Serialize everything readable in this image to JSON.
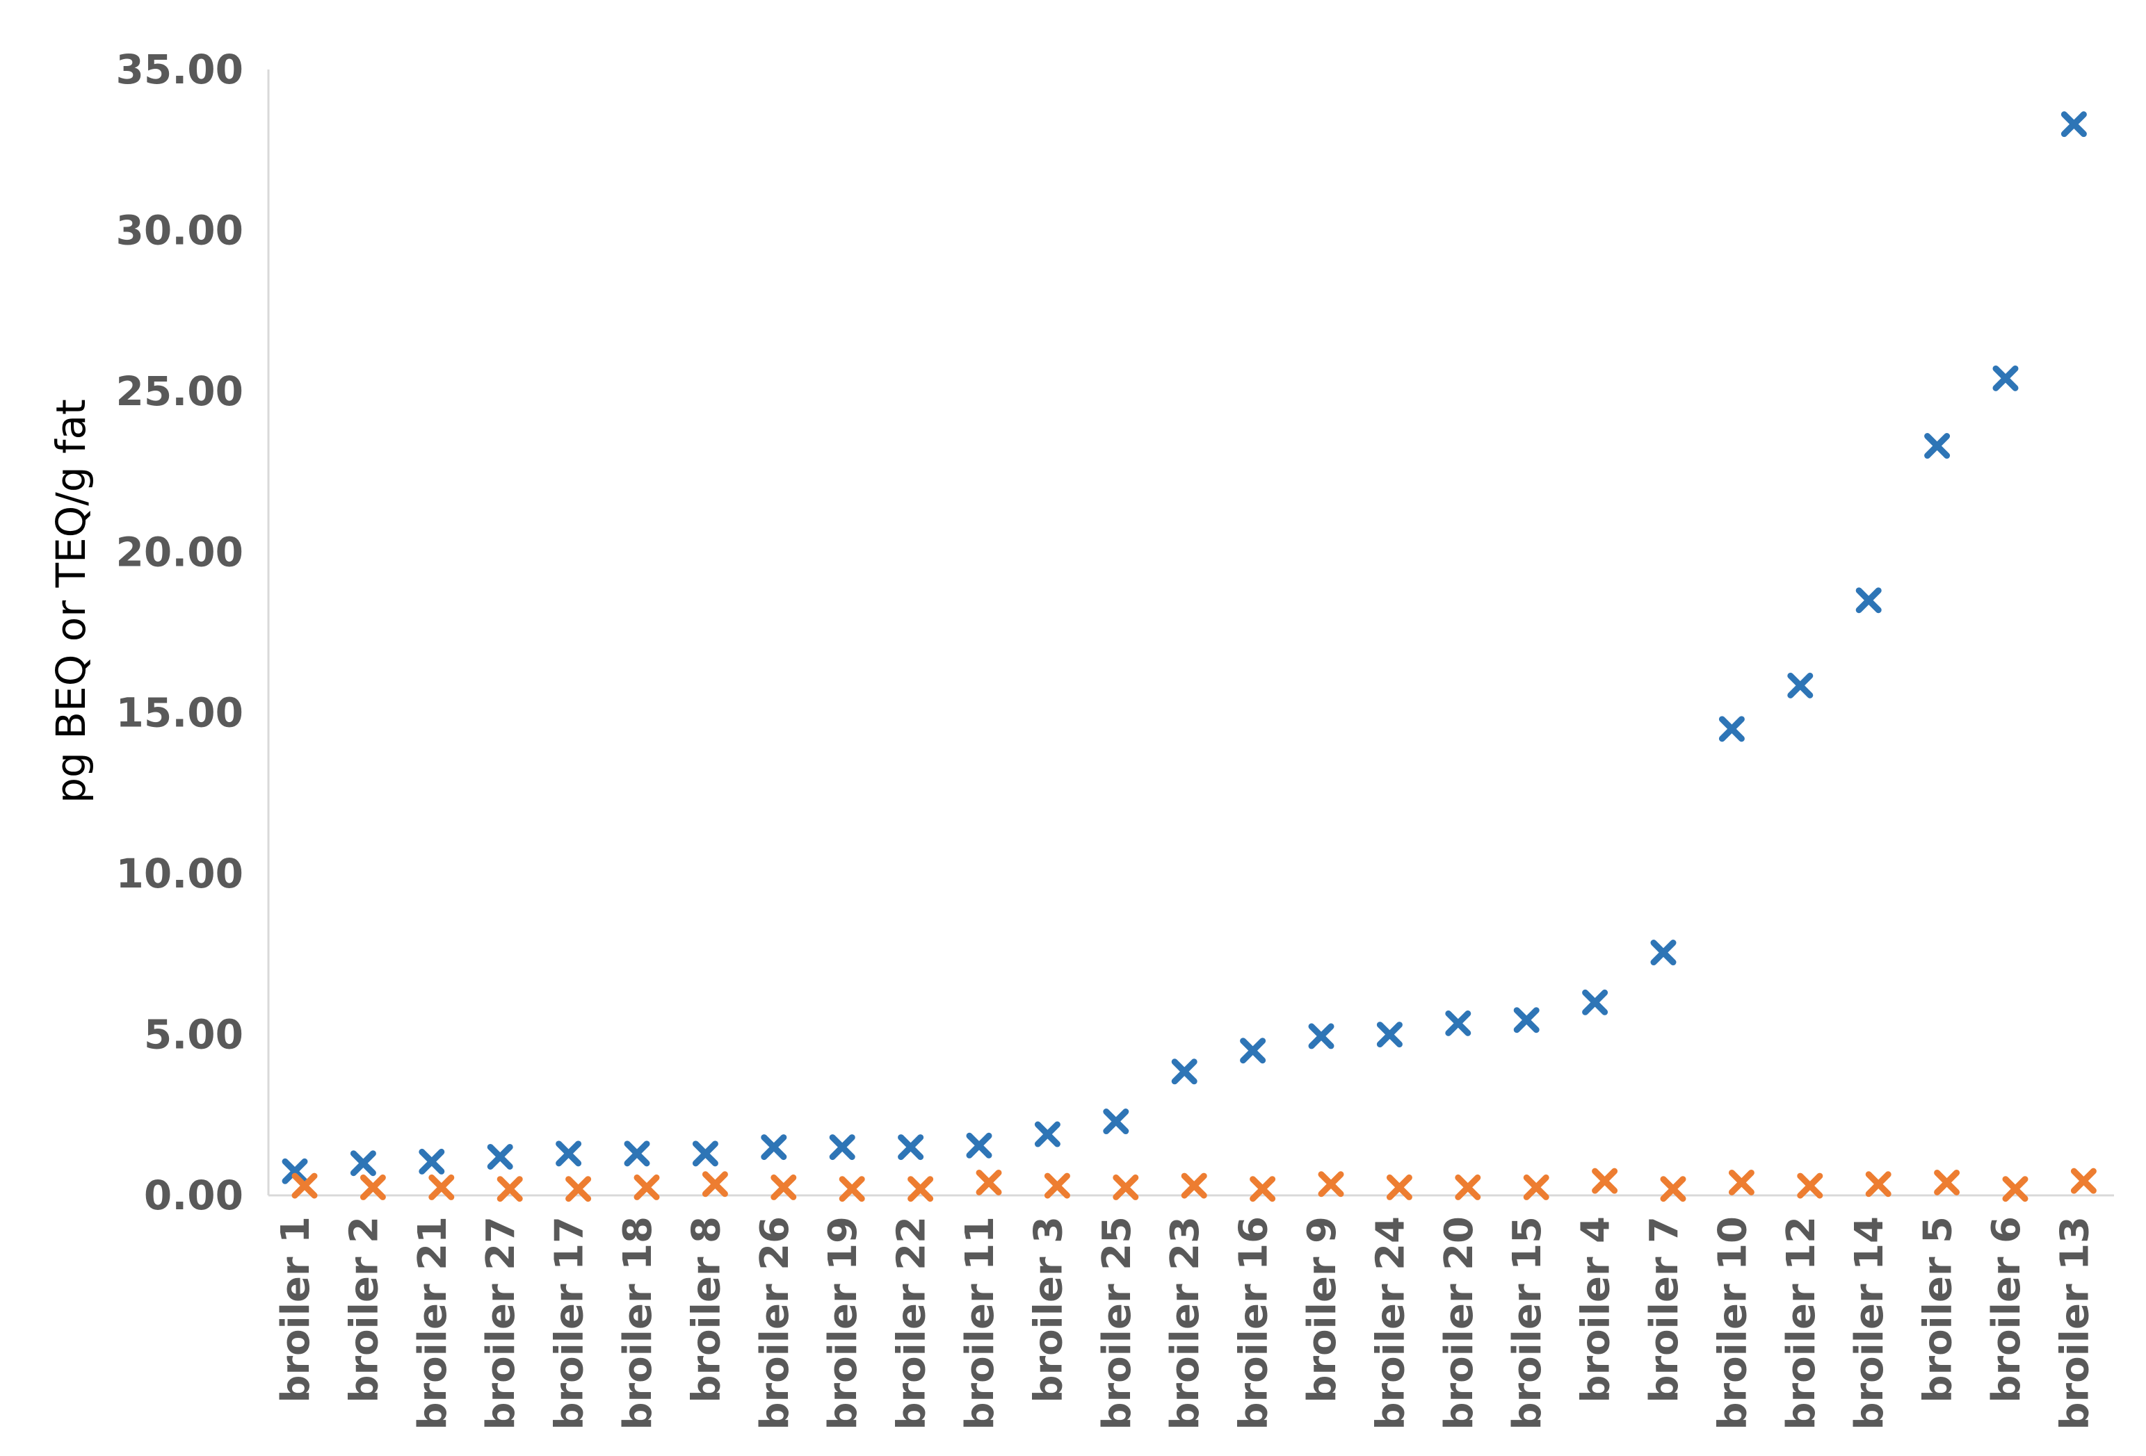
{
  "chart_data": {
    "type": "scatter",
    "title": "",
    "xlabel": "",
    "ylabel": "pg BEQ or TEQ/g fat",
    "ylim": [
      0,
      35
    ],
    "yticks": [
      "0.00",
      "5.00",
      "10.00",
      "15.00",
      "20.00",
      "25.00",
      "30.00",
      "35.00"
    ],
    "grid": false,
    "legend": "none",
    "marker": "x",
    "categories": [
      "broiler 1",
      "broiler 2",
      "broiler 21",
      "broiler 27",
      "broiler 17",
      "broiler 18",
      "broiler 8",
      "broiler 26",
      "broiler 19",
      "broiler 22",
      "broiler 11",
      "broiler 3",
      "broiler 25",
      "broiler 23",
      "broiler 16",
      "broiler 9",
      "broiler 24",
      "broiler 20",
      "broiler 15",
      "broiler 4",
      "broiler 7",
      "broiler 10",
      "broiler 12",
      "broiler 14",
      "broiler 5",
      "broiler 6",
      "broiler 13"
    ],
    "series": [
      {
        "color": "#2E75B6",
        "values": [
          0.75,
          1.0,
          1.05,
          1.2,
          1.3,
          1.3,
          1.3,
          1.5,
          1.5,
          1.5,
          1.55,
          1.9,
          2.3,
          3.85,
          4.5,
          4.95,
          5.0,
          5.35,
          5.45,
          6.0,
          7.55,
          14.5,
          15.85,
          18.5,
          23.3,
          25.4,
          33.3
        ]
      },
      {
        "color": "#ED7D31",
        "values": [
          0.3,
          0.25,
          0.25,
          0.2,
          0.2,
          0.25,
          0.35,
          0.25,
          0.2,
          0.2,
          0.4,
          0.3,
          0.25,
          0.3,
          0.2,
          0.35,
          0.25,
          0.25,
          0.25,
          0.45,
          0.2,
          0.4,
          0.3,
          0.35,
          0.4,
          0.2,
          0.45
        ]
      }
    ]
  }
}
